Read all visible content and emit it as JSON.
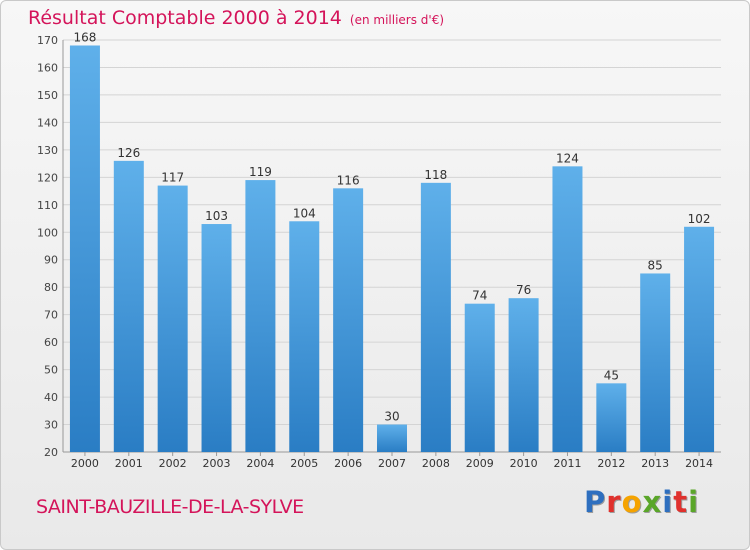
{
  "header": {
    "title": "Résultat Comptable 2000 à 2014",
    "subtitle": "(en milliers d'€)"
  },
  "footer": {
    "commune": "SAINT-BAUZILLE-DE-LA-SYLVE",
    "logo_letters": [
      "P",
      "r",
      "o",
      "x",
      "i",
      "t",
      "i"
    ],
    "logo_colors": [
      "#2e6fbf",
      "#e0312d",
      "#f5a300",
      "#5aa629",
      "#2e6fbf",
      "#e0312d",
      "#5aa629"
    ]
  },
  "chart_data": {
    "type": "bar",
    "title": "Résultat Comptable 2000 à 2014",
    "subtitle": "(en milliers d'€)",
    "categories": [
      "2000",
      "2001",
      "2002",
      "2003",
      "2004",
      "2005",
      "2006",
      "2007",
      "2008",
      "2009",
      "2010",
      "2011",
      "2012",
      "2013",
      "2014"
    ],
    "values": [
      168,
      126,
      117,
      103,
      119,
      104,
      116,
      30,
      118,
      74,
      76,
      124,
      45,
      85,
      102
    ],
    "ylim": [
      20,
      170
    ],
    "yticks": [
      20,
      30,
      40,
      50,
      60,
      70,
      80,
      90,
      100,
      110,
      120,
      130,
      140,
      150,
      160,
      170
    ],
    "grid": true,
    "bar_color": "#4a9fe0"
  }
}
